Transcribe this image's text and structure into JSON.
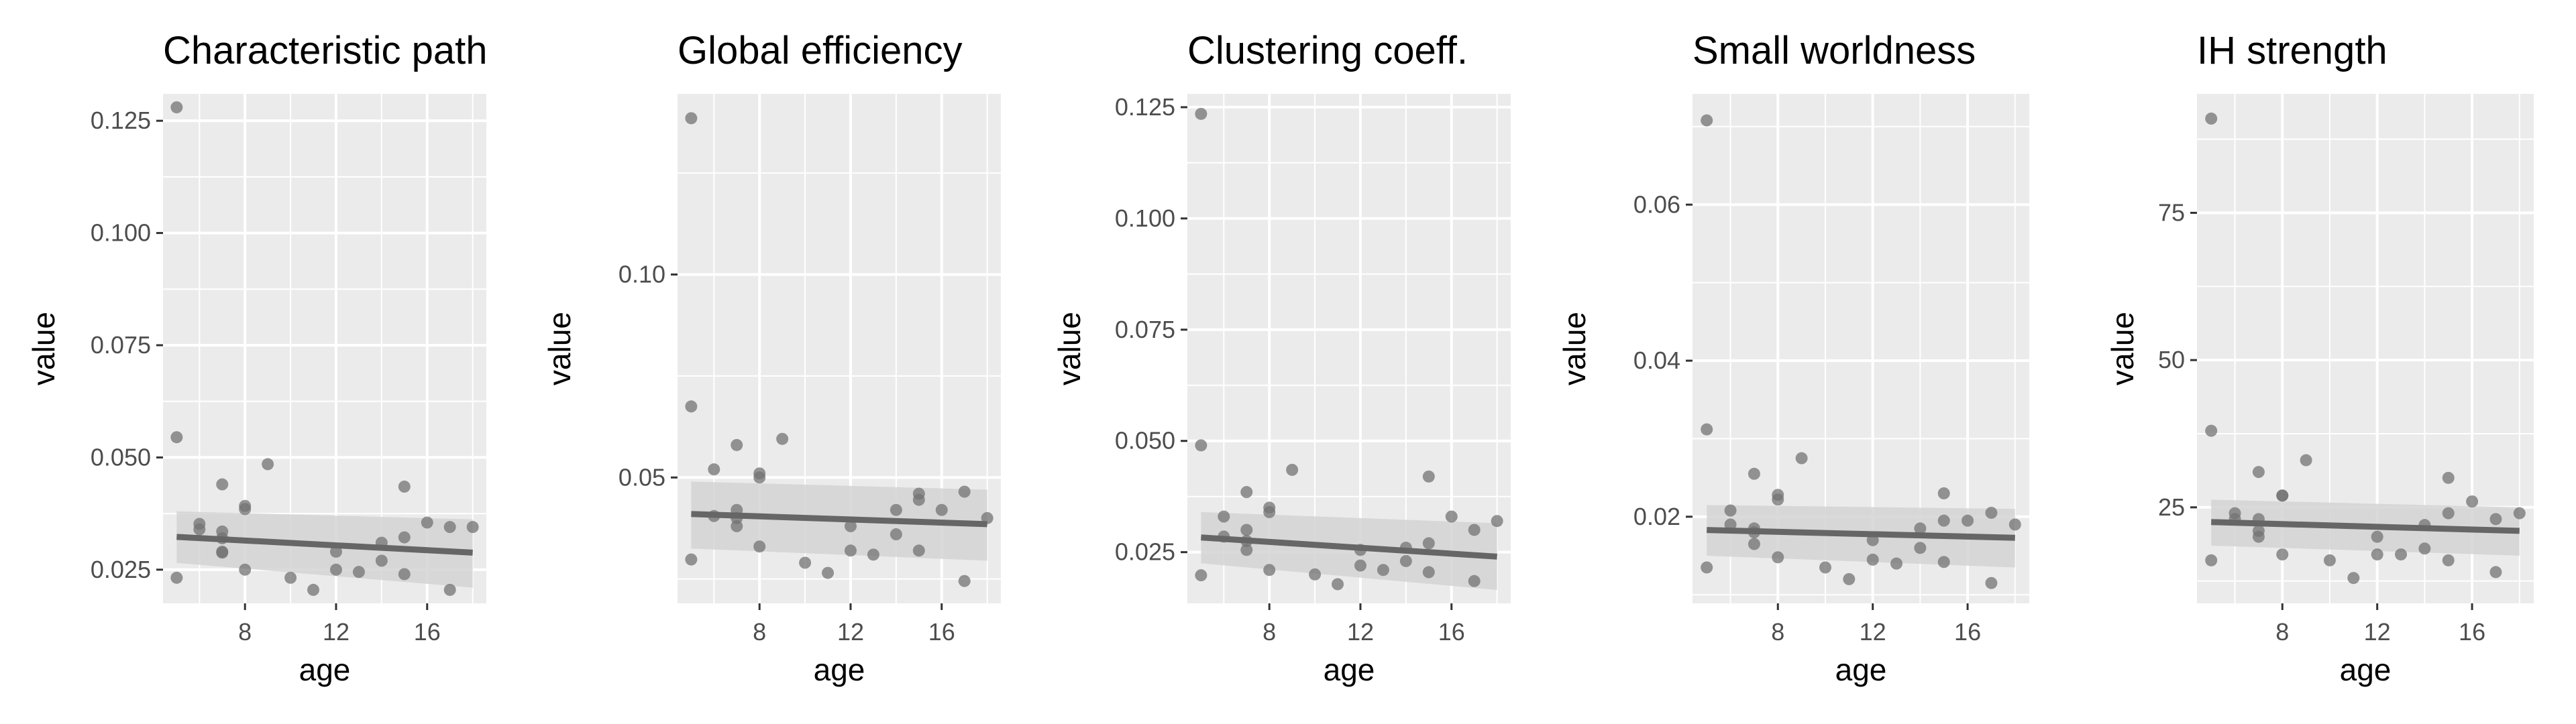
{
  "chart_data": [
    {
      "type": "scatter",
      "title": "Characteristic path",
      "xlabel": "age",
      "ylabel": "value",
      "xlim": [
        4.4,
        18.6
      ],
      "ylim": [
        0.0175,
        0.131
      ],
      "xticks": [
        8,
        12,
        16
      ],
      "yticks": [
        0.025,
        0.05,
        0.075,
        0.1,
        0.125
      ],
      "ytick_labels": [
        "0.025",
        "0.050",
        "0.075",
        "0.100",
        "0.125"
      ],
      "points": [
        [
          5,
          0.128
        ],
        [
          5,
          0.0545
        ],
        [
          5,
          0.0232
        ],
        [
          6,
          0.0352
        ],
        [
          6,
          0.034
        ],
        [
          7,
          0.044
        ],
        [
          7,
          0.0335
        ],
        [
          7,
          0.032
        ],
        [
          7,
          0.029
        ],
        [
          7,
          0.0288
        ],
        [
          8,
          0.0392
        ],
        [
          8,
          0.0385
        ],
        [
          8,
          0.025
        ],
        [
          9,
          0.0485
        ],
        [
          10,
          0.0232
        ],
        [
          11,
          0.0205
        ],
        [
          12,
          0.029
        ],
        [
          12,
          0.025
        ],
        [
          13,
          0.0245
        ],
        [
          14,
          0.031
        ],
        [
          14,
          0.027
        ],
        [
          15,
          0.0435
        ],
        [
          15,
          0.0322
        ],
        [
          15,
          0.024
        ],
        [
          16,
          0.0355
        ],
        [
          17,
          0.0345
        ],
        [
          17,
          0.0205
        ],
        [
          18,
          0.0345
        ]
      ],
      "trend": {
        "x": [
          5,
          18
        ],
        "y": [
          0.0323,
          0.0288
        ],
        "ci_low": [
          0.0265,
          0.021
        ],
        "ci_high": [
          0.038,
          0.0362
        ]
      }
    },
    {
      "type": "scatter",
      "title": "Global efficiency",
      "xlabel": "age",
      "ylabel": "value",
      "xlim": [
        4.4,
        18.6
      ],
      "ylim": [
        0.019,
        0.1445
      ],
      "xticks": [
        8,
        12,
        16
      ],
      "yticks": [
        0.05,
        0.1
      ],
      "ytick_labels": [
        "0.05",
        "0.10"
      ],
      "points": [
        [
          5,
          0.1385
        ],
        [
          5,
          0.0675
        ],
        [
          5,
          0.0298
        ],
        [
          6,
          0.052
        ],
        [
          6,
          0.0405
        ],
        [
          7,
          0.058
        ],
        [
          7,
          0.042
        ],
        [
          7,
          0.04
        ],
        [
          7,
          0.038
        ],
        [
          8,
          0.051
        ],
        [
          8,
          0.05
        ],
        [
          8,
          0.033
        ],
        [
          9,
          0.0595
        ],
        [
          10,
          0.029
        ],
        [
          11,
          0.0265
        ],
        [
          12,
          0.038
        ],
        [
          12,
          0.032
        ],
        [
          13,
          0.031
        ],
        [
          14,
          0.042
        ],
        [
          14,
          0.036
        ],
        [
          15,
          0.046
        ],
        [
          15,
          0.0445
        ],
        [
          15,
          0.032
        ],
        [
          16,
          0.042
        ],
        [
          17,
          0.0465
        ],
        [
          17,
          0.0245
        ],
        [
          18,
          0.04
        ]
      ],
      "trend": {
        "x": [
          5,
          18
        ],
        "y": [
          0.041,
          0.0385
        ],
        "ci_low": [
          0.0325,
          0.0295
        ],
        "ci_high": [
          0.049,
          0.047
        ]
      }
    },
    {
      "type": "scatter",
      "title": "Clustering coeff.",
      "xlabel": "age",
      "ylabel": "value",
      "xlim": [
        4.4,
        18.6
      ],
      "ylim": [
        0.0135,
        0.128
      ],
      "xticks": [
        8,
        12,
        16
      ],
      "yticks": [
        0.025,
        0.05,
        0.075,
        0.1,
        0.125
      ],
      "ytick_labels": [
        "0.025",
        "0.050",
        "0.075",
        "0.100",
        "0.125"
      ],
      "points": [
        [
          5,
          0.1235
        ],
        [
          5,
          0.049
        ],
        [
          5,
          0.0198
        ],
        [
          6,
          0.033
        ],
        [
          6,
          0.0285
        ],
        [
          7,
          0.0385
        ],
        [
          7,
          0.03
        ],
        [
          7,
          0.0275
        ],
        [
          7,
          0.0255
        ],
        [
          8,
          0.035
        ],
        [
          8,
          0.034
        ],
        [
          8,
          0.021
        ],
        [
          9,
          0.0435
        ],
        [
          10,
          0.02
        ],
        [
          11,
          0.0178
        ],
        [
          12,
          0.0255
        ],
        [
          12,
          0.022
        ],
        [
          13,
          0.021
        ],
        [
          14,
          0.026
        ],
        [
          14,
          0.023
        ],
        [
          15,
          0.042
        ],
        [
          15,
          0.027
        ],
        [
          15,
          0.0205
        ],
        [
          16,
          0.033
        ],
        [
          17,
          0.03
        ],
        [
          17,
          0.0185
        ],
        [
          18,
          0.032
        ]
      ],
      "trend": {
        "x": [
          5,
          18
        ],
        "y": [
          0.0283,
          0.024
        ],
        "ci_low": [
          0.0225,
          0.0165
        ],
        "ci_high": [
          0.034,
          0.0315
        ]
      }
    },
    {
      "type": "scatter",
      "title": "Small worldness",
      "xlabel": "age",
      "ylabel": "value",
      "xlim": [
        4.4,
        18.6
      ],
      "ylim": [
        0.0089,
        0.0742
      ],
      "xticks": [
        8,
        12,
        16
      ],
      "yticks": [
        0.02,
        0.04,
        0.06
      ],
      "ytick_labels": [
        "0.02",
        "0.04",
        "0.06"
      ],
      "points": [
        [
          5,
          0.0708
        ],
        [
          5,
          0.0312
        ],
        [
          5,
          0.0135
        ],
        [
          6,
          0.0208
        ],
        [
          6,
          0.019
        ],
        [
          7,
          0.0255
        ],
        [
          7,
          0.0185
        ],
        [
          7,
          0.018
        ],
        [
          7,
          0.0165
        ],
        [
          8,
          0.0228
        ],
        [
          8,
          0.0222
        ],
        [
          8,
          0.0148
        ],
        [
          9,
          0.0275
        ],
        [
          10,
          0.0135
        ],
        [
          11,
          0.012
        ],
        [
          12,
          0.017
        ],
        [
          12,
          0.0145
        ],
        [
          13,
          0.014
        ],
        [
          14,
          0.0185
        ],
        [
          14,
          0.016
        ],
        [
          15,
          0.023
        ],
        [
          15,
          0.0195
        ],
        [
          15,
          0.0142
        ],
        [
          16,
          0.0195
        ],
        [
          17,
          0.0205
        ],
        [
          17,
          0.0115
        ],
        [
          18,
          0.019
        ]
      ],
      "trend": {
        "x": [
          5,
          18
        ],
        "y": [
          0.0183,
          0.0173
        ],
        "ci_low": [
          0.015,
          0.0135
        ],
        "ci_high": [
          0.0215,
          0.021
        ]
      }
    },
    {
      "type": "scatter",
      "title": "IH strength",
      "xlabel": "age",
      "ylabel": "value",
      "xlim": [
        4.4,
        18.6
      ],
      "ylim": [
        8.7,
        95.2
      ],
      "xticks": [
        8,
        12,
        16
      ],
      "yticks": [
        25,
        50,
        75
      ],
      "ytick_labels": [
        "25",
        "50",
        "75"
      ],
      "points": [
        [
          5,
          91
        ],
        [
          5,
          38
        ],
        [
          5,
          16
        ],
        [
          6,
          24
        ],
        [
          6,
          23
        ],
        [
          7,
          31
        ],
        [
          7,
          23
        ],
        [
          7,
          21
        ],
        [
          7,
          20
        ],
        [
          8,
          27
        ],
        [
          8,
          27
        ],
        [
          8,
          17
        ],
        [
          9,
          33
        ],
        [
          10,
          16
        ],
        [
          11,
          13
        ],
        [
          12,
          20
        ],
        [
          12,
          17
        ],
        [
          13,
          17
        ],
        [
          14,
          22
        ],
        [
          14,
          18
        ],
        [
          15,
          30
        ],
        [
          15,
          24
        ],
        [
          15,
          16
        ],
        [
          16,
          26
        ],
        [
          17,
          23
        ],
        [
          17,
          14
        ],
        [
          18,
          24
        ]
      ],
      "trend": {
        "x": [
          5,
          18
        ],
        "y": [
          22.5,
          21.0
        ],
        "ci_low": [
          18.5,
          16.8
        ],
        "ci_high": [
          26.3,
          25.0
        ]
      }
    }
  ],
  "colors": {
    "panel_bg": "#ebebeb",
    "grid": "#ffffff",
    "point": "#737373",
    "trend_line": "#666666",
    "ci_band": "#d4d4d4",
    "tick_text": "#4d4d4d"
  }
}
